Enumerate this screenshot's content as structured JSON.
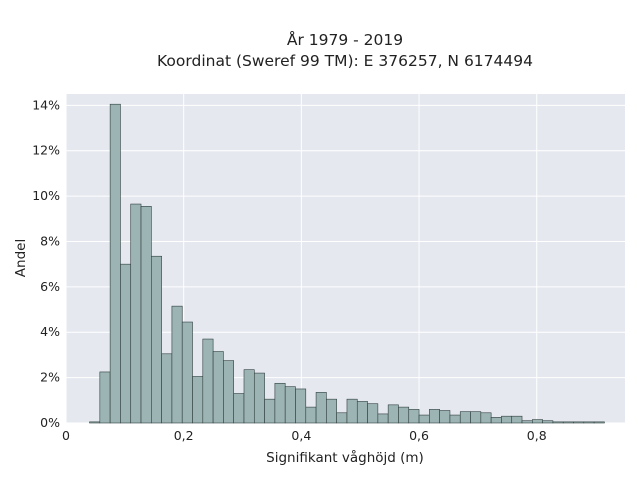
{
  "chart_data": {
    "type": "bar",
    "title_lines": [
      "År 1979 - 2019",
      "Koordinat (Sweref 99 TM): E 376257, N 6174494"
    ],
    "xlabel": "Signifikant våghöjd (m)",
    "ylabel": "Andel",
    "xlim": [
      0,
      0.95
    ],
    "ylim": [
      0,
      14.5
    ],
    "x_ticks": [
      0,
      0.2,
      0.4,
      0.6,
      0.8
    ],
    "x_tick_labels": [
      "0",
      "0,2",
      "0,4",
      "0,6",
      "0,8"
    ],
    "y_ticks": [
      0,
      2,
      4,
      6,
      8,
      10,
      12,
      14
    ],
    "y_tick_labels": [
      "0%",
      "2%",
      "4%",
      "6%",
      "8%",
      "10%",
      "12%",
      "14%"
    ],
    "bin_start": 0.04,
    "bin_width": 0.0175,
    "values": [
      0.05,
      2.25,
      14.05,
      7.0,
      9.65,
      9.55,
      7.35,
      3.05,
      5.15,
      4.45,
      2.05,
      3.7,
      3.15,
      2.75,
      1.3,
      2.35,
      2.2,
      1.05,
      1.75,
      1.6,
      1.5,
      0.7,
      1.35,
      1.05,
      0.45,
      1.05,
      0.95,
      0.85,
      0.4,
      0.8,
      0.7,
      0.6,
      0.35,
      0.6,
      0.55,
      0.35,
      0.5,
      0.5,
      0.45,
      0.25,
      0.3,
      0.3,
      0.1,
      0.15,
      0.1,
      0.05,
      0.05,
      0.05,
      0.05,
      0.05
    ],
    "grid": true,
    "colors": {
      "plot_background": "#e5e8ef",
      "grid": "#ffffff",
      "bar_fill": "#9cb4b4",
      "bar_stroke": "#2f3e3e"
    }
  }
}
